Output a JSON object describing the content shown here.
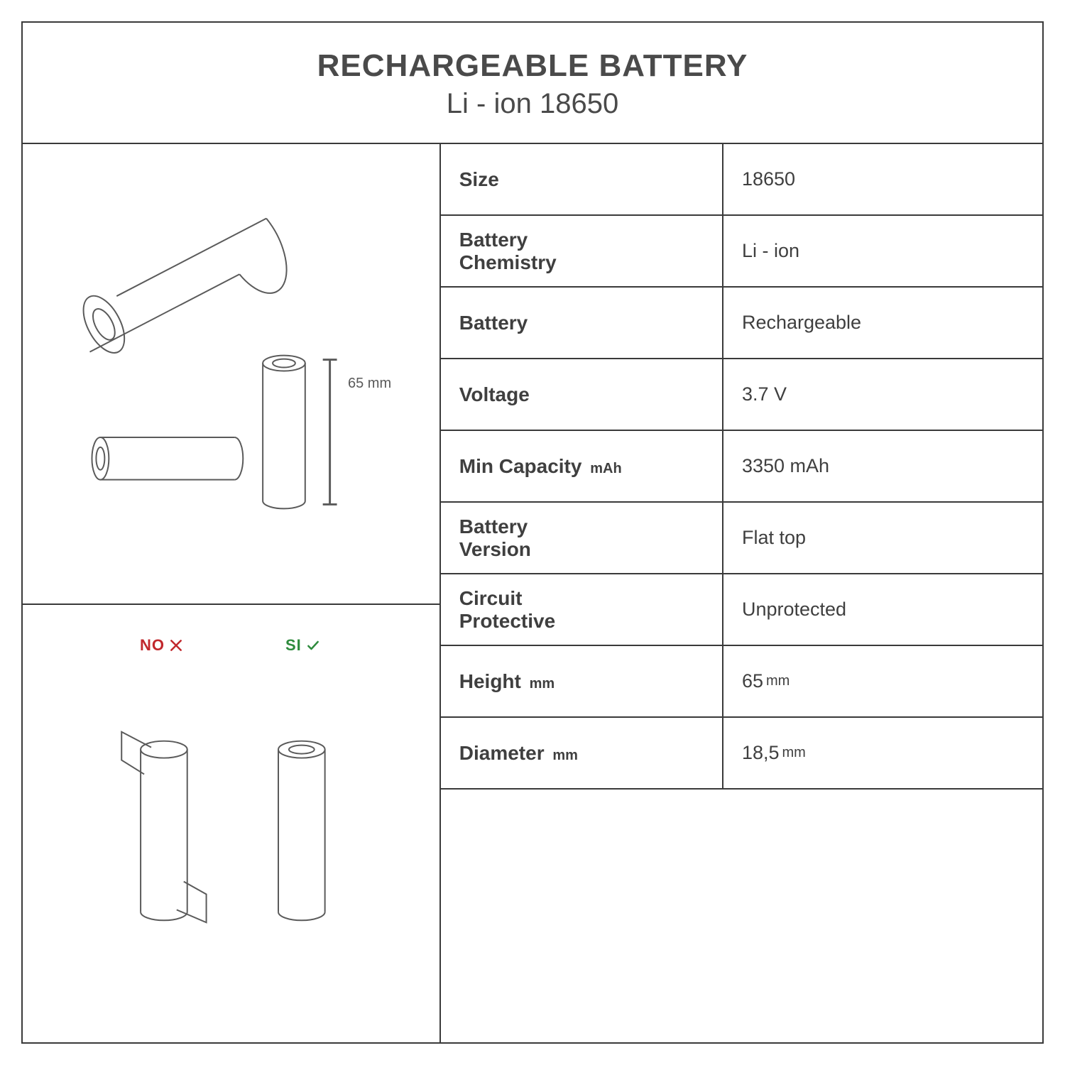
{
  "header": {
    "title": "RECHARGEABLE BATTERY",
    "subtitle": "Li - ion 18650"
  },
  "colors": {
    "border": "#3a3a3a",
    "text": "#3f3f3f",
    "line": "#5a5a5a",
    "no": "#c1282d",
    "si": "#2e8b3d",
    "bg": "#ffffff"
  },
  "diagram": {
    "height_label": "65 mm",
    "no_label": "NO",
    "si_label": "SI"
  },
  "specs": [
    {
      "label": "Size",
      "sublabel": "",
      "value": "18650",
      "subvalue": ""
    },
    {
      "label": "Battery\nChemistry",
      "sublabel": "",
      "value": "Li - ion",
      "subvalue": ""
    },
    {
      "label": "Battery",
      "sublabel": "",
      "value": "Rechargeable",
      "subvalue": ""
    },
    {
      "label": "Voltage",
      "sublabel": "",
      "value": "3.7 V",
      "subvalue": ""
    },
    {
      "label": "Min Capacity",
      "sublabel": "mAh",
      "value": "3350 mAh",
      "subvalue": ""
    },
    {
      "label": "Battery\nVersion",
      "sublabel": "",
      "value": "Flat top",
      "subvalue": ""
    },
    {
      "label": "Circuit\nProtective",
      "sublabel": "",
      "value": "Unprotected",
      "subvalue": ""
    },
    {
      "label": "Height",
      "sublabel": "mm",
      "value": "65",
      "subvalue": "mm"
    },
    {
      "label": "Diameter",
      "sublabel": "mm",
      "value": "18,5",
      "subvalue": "mm"
    }
  ]
}
